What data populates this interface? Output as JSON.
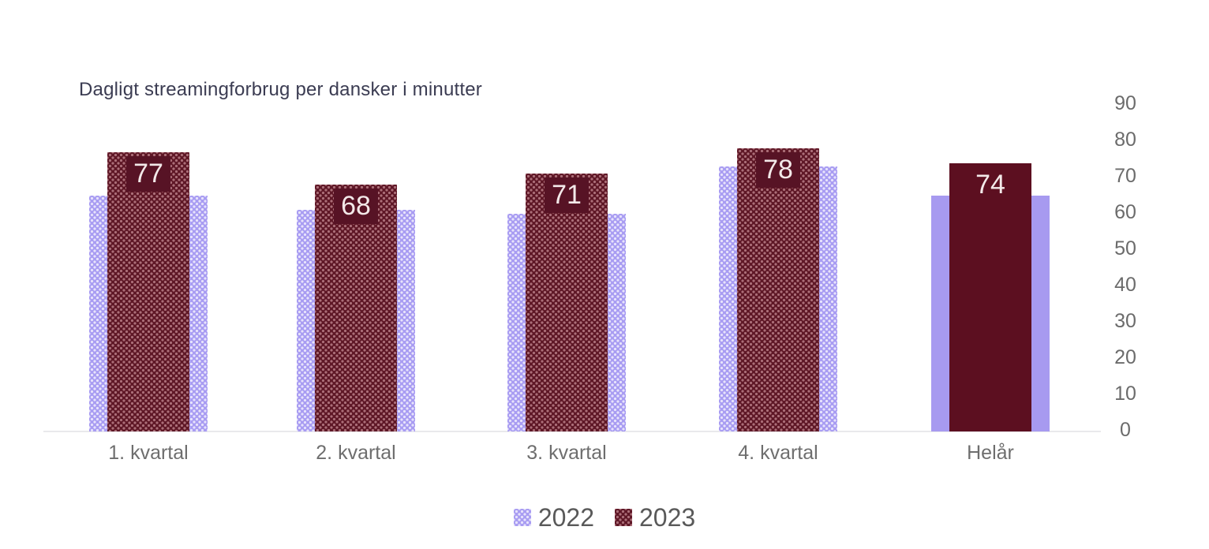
{
  "title": "Dagligt streamingforbrug per dansker i minutter",
  "chart_data": {
    "type": "bar",
    "title": "Dagligt streamingforbrug per dansker i minutter",
    "categories": [
      "1. kvartal",
      "2. kvartal",
      "3. kvartal",
      "4. kvartal",
      "Helår"
    ],
    "series": [
      {
        "name": "2022",
        "color": "#a79af0",
        "pattern": "dotted",
        "values": [
          65,
          61,
          60,
          73,
          65
        ],
        "show_data_labels": false
      },
      {
        "name": "2023",
        "color": "#5c0f20",
        "pattern": "dotted",
        "values": [
          77,
          68,
          71,
          78,
          74
        ],
        "show_data_labels": true,
        "data_labels": [
          "77",
          "68",
          "71",
          "78",
          "74"
        ],
        "data_label_text_color": "#f3e9e9"
      }
    ],
    "notes": "Quarterly bars use a dotted fill pattern; the 'Helår' (full-year) bars are solid fills. 2023 bars are drawn in front of the wider 2022 bars.",
    "ylabel": "",
    "xlabel": "",
    "ylim": [
      0,
      90
    ],
    "yticks": [
      0,
      10,
      20,
      30,
      40,
      50,
      60,
      70,
      80,
      90
    ],
    "y_axis_side": "right",
    "grid": false,
    "legend_position": "bottom"
  },
  "legend": {
    "items": [
      {
        "label": "2022",
        "color": "#a79af0"
      },
      {
        "label": "2023",
        "color": "#5c0f20"
      }
    ]
  },
  "colors": {
    "background": "#ffffff",
    "title_text": "#3b3c52",
    "axis_text": "#6b6b6b",
    "category_text": "#6e6e6e",
    "legend_text": "#595959",
    "axis_line": "#e9e9ec",
    "series_2022": "#a79af0",
    "series_2023": "#5c0f20",
    "value_label_text": "#f3e9e9"
  }
}
